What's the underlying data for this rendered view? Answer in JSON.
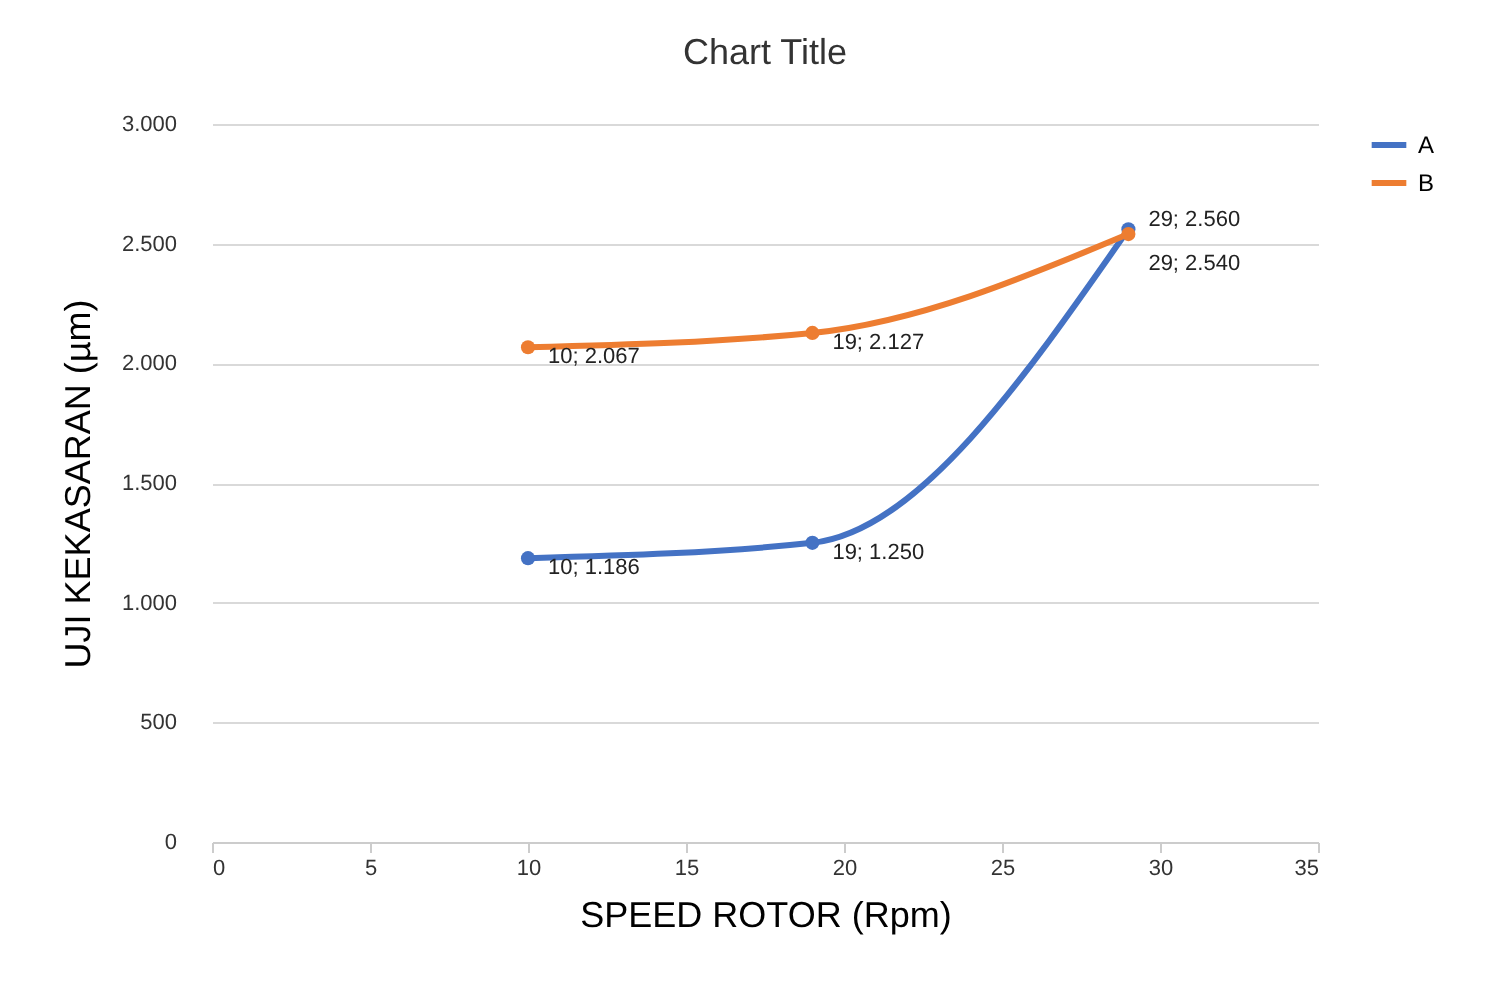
{
  "chart_data": {
    "type": "line",
    "title": "Chart Title",
    "xlabel": "SPEED ROTOR (Rpm)",
    "ylabel": "UJI KEKASARAN (µm)",
    "x": [
      10,
      19,
      29
    ],
    "series": [
      {
        "name": "A",
        "color": "#4472c4",
        "values": [
          1186,
          1250,
          2560
        ],
        "value_labels": [
          "10; 1.186",
          "19; 1.250",
          "29; 2.560"
        ]
      },
      {
        "name": "B",
        "color": "#ed7d31",
        "values": [
          2067,
          2127,
          2540
        ],
        "value_labels": [
          "10; 2.067",
          "19; 2.127",
          "29; 2.540"
        ]
      }
    ],
    "xlim": [
      0,
      35
    ],
    "xticks": [
      0,
      5,
      10,
      15,
      20,
      25,
      30,
      35
    ],
    "ylim": [
      0,
      3000
    ],
    "yticks": [
      0,
      {
        "value": 500,
        "label": "500"
      },
      {
        "value": 1000,
        "label": "1.000"
      },
      {
        "value": 1500,
        "label": "1.500"
      },
      {
        "value": 2000,
        "label": "2.000"
      },
      {
        "value": 2500,
        "label": "2.500"
      },
      {
        "value": 3000,
        "label": "3.000"
      }
    ],
    "grid": "y",
    "legend": "right",
    "marker": "circle",
    "line_style": "solid"
  }
}
